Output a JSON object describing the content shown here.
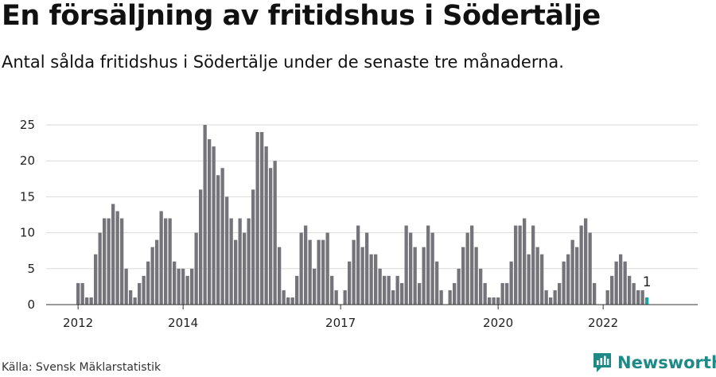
{
  "header": {
    "title": "En försäljning av fritidshus i Södertälje",
    "subtitle": "Antal sålda fritidshus i Södertälje under de senaste tre månaderna."
  },
  "footer": {
    "source": "Källa: Svensk Mäklarstatistik",
    "brand": "Newsworthy"
  },
  "colors": {
    "bar": "#75747a",
    "highlight": "#1aa3a0",
    "grid": "#d9d9d9",
    "brand": "#1e8a87"
  },
  "chart_data": {
    "type": "bar",
    "title": "En försäljning av fritidshus i Södertälje",
    "subtitle": "Antal sålda fritidshus i Södertälje under de senaste tre månaderna.",
    "xlabel": "",
    "ylabel": "",
    "ylim": [
      0,
      25
    ],
    "yticks": [
      0,
      5,
      10,
      15,
      20,
      25
    ],
    "xtick_labels": [
      "2012",
      "2014",
      "2017",
      "2020",
      "2022"
    ],
    "grid": true,
    "values": [
      3,
      3,
      1,
      1,
      7,
      10,
      12,
      12,
      14,
      13,
      12,
      5,
      2,
      1,
      3,
      4,
      6,
      8,
      9,
      13,
      12,
      12,
      6,
      5,
      5,
      4,
      5,
      10,
      16,
      25,
      23,
      22,
      18,
      19,
      15,
      12,
      9,
      12,
      10,
      12,
      16,
      24,
      24,
      22,
      19,
      20,
      8,
      2,
      1,
      1,
      4,
      10,
      11,
      9,
      5,
      9,
      9,
      10,
      4,
      2,
      0,
      2,
      6,
      9,
      11,
      8,
      10,
      7,
      7,
      5,
      4,
      4,
      2,
      4,
      3,
      11,
      10,
      8,
      3,
      8,
      11,
      10,
      6,
      2,
      0,
      2,
      3,
      5,
      8,
      10,
      11,
      8,
      5,
      3,
      1,
      1,
      1,
      3,
      3,
      6,
      11,
      11,
      12,
      7,
      11,
      8,
      7,
      2,
      1,
      2,
      3,
      6,
      7,
      9,
      8,
      11,
      12,
      10,
      3,
      0,
      0,
      2,
      4,
      6,
      7,
      6,
      4,
      3,
      2,
      2,
      1
    ],
    "highlight_last": true,
    "annotation": "1"
  }
}
